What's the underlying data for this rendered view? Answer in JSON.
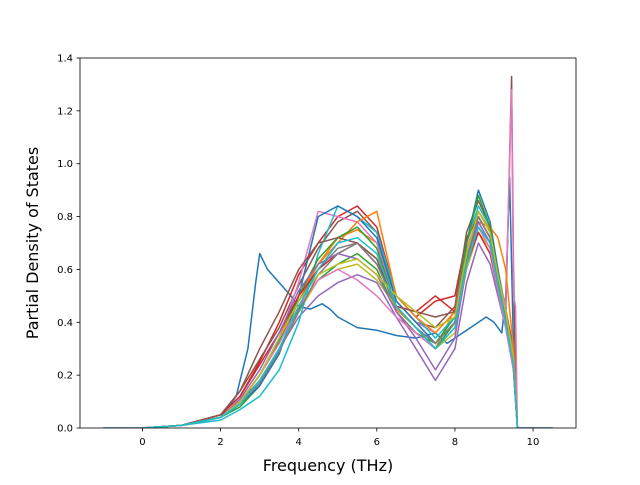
{
  "chart_data": {
    "type": "line",
    "title": "",
    "xlabel": "Frequency (THz)",
    "ylabel": "Partial Density of States",
    "xlim": [
      -1.6,
      11.1
    ],
    "ylim": [
      0.0,
      1.4
    ],
    "xticks": [
      0,
      2,
      4,
      6,
      8,
      10
    ],
    "yticks": [
      0.0,
      0.2,
      0.4,
      0.6,
      0.8,
      1.0,
      1.2,
      1.4
    ],
    "xtick_labels": [
      "0",
      "2",
      "4",
      "6",
      "8",
      "10"
    ],
    "ytick_labels": [
      "0.0",
      "0.2",
      "0.4",
      "0.6",
      "0.8",
      "1.0",
      "1.2",
      "1.4"
    ],
    "grid": false,
    "legend": "none",
    "colors": [
      "#1f77b4",
      "#ff7f0e",
      "#2ca02c",
      "#d62728",
      "#9467bd",
      "#8c564b",
      "#e377c2",
      "#7f7f7f",
      "#bcbd22",
      "#17becf"
    ],
    "series_note_count": 40,
    "series": [
      {
        "color": "#1f77b4",
        "x": [
          -1.0,
          0.0,
          1.0,
          2.0,
          2.4,
          2.7,
          2.9,
          3.0,
          3.2,
          3.5,
          3.8,
          4.0,
          4.3,
          4.6,
          4.8,
          5.0,
          5.5,
          6.0,
          6.5,
          7.0,
          7.5,
          7.8,
          8.0,
          8.2,
          8.4,
          8.6,
          8.8,
          9.0,
          9.2,
          9.3,
          9.4,
          9.5,
          9.6,
          10.0,
          10.5
        ],
        "y": [
          0.0,
          0.0,
          0.01,
          0.04,
          0.12,
          0.3,
          0.55,
          0.66,
          0.6,
          0.55,
          0.5,
          0.46,
          0.45,
          0.47,
          0.45,
          0.42,
          0.38,
          0.37,
          0.35,
          0.34,
          0.36,
          0.32,
          0.34,
          0.36,
          0.38,
          0.4,
          0.42,
          0.4,
          0.36,
          0.5,
          0.95,
          0.3,
          0.0,
          0.0,
          0.0
        ]
      },
      {
        "color": "#ff7f0e",
        "x": [
          0.0,
          1.0,
          2.0,
          2.5,
          3.0,
          3.5,
          4.0,
          4.5,
          5.0,
          5.5,
          6.0,
          6.5,
          7.0,
          7.5,
          8.0,
          8.3,
          8.6,
          8.9,
          9.1,
          9.3,
          9.5,
          9.6
        ],
        "y": [
          0.0,
          0.01,
          0.04,
          0.1,
          0.2,
          0.32,
          0.48,
          0.62,
          0.72,
          0.75,
          0.7,
          0.45,
          0.38,
          0.3,
          0.45,
          0.7,
          0.82,
          0.75,
          0.6,
          0.45,
          0.3,
          0.0
        ]
      },
      {
        "color": "#2ca02c",
        "x": [
          0.0,
          1.0,
          2.0,
          2.5,
          3.0,
          3.5,
          4.0,
          4.5,
          5.0,
          5.5,
          6.0,
          6.5,
          7.0,
          7.5,
          8.0,
          8.3,
          8.6,
          8.9,
          9.1,
          9.3,
          9.5,
          9.6
        ],
        "y": [
          0.0,
          0.01,
          0.04,
          0.08,
          0.16,
          0.3,
          0.45,
          0.56,
          0.62,
          0.66,
          0.6,
          0.44,
          0.36,
          0.32,
          0.42,
          0.65,
          0.78,
          0.7,
          0.55,
          0.42,
          0.25,
          0.0
        ]
      },
      {
        "color": "#d62728",
        "x": [
          0.0,
          1.0,
          2.0,
          2.5,
          3.0,
          3.5,
          4.0,
          4.5,
          5.0,
          5.5,
          6.0,
          6.5,
          7.0,
          7.5,
          8.0,
          8.3,
          8.6,
          8.9,
          9.1,
          9.3,
          9.5,
          9.6
        ],
        "y": [
          0.0,
          0.01,
          0.05,
          0.12,
          0.25,
          0.4,
          0.58,
          0.7,
          0.8,
          0.84,
          0.76,
          0.5,
          0.42,
          0.48,
          0.5,
          0.72,
          0.8,
          0.72,
          0.58,
          0.44,
          0.3,
          0.0
        ]
      },
      {
        "color": "#9467bd",
        "x": [
          0.0,
          1.0,
          2.0,
          2.5,
          3.0,
          3.5,
          4.0,
          4.5,
          5.0,
          5.5,
          6.0,
          6.5,
          7.0,
          7.5,
          8.0,
          8.3,
          8.6,
          8.9,
          9.1,
          9.3,
          9.5,
          9.6
        ],
        "y": [
          0.0,
          0.01,
          0.04,
          0.1,
          0.18,
          0.3,
          0.42,
          0.5,
          0.55,
          0.58,
          0.55,
          0.42,
          0.3,
          0.18,
          0.3,
          0.55,
          0.7,
          0.62,
          0.5,
          0.38,
          0.22,
          0.0
        ]
      },
      {
        "color": "#8c564b",
        "x": [
          0.0,
          1.0,
          2.0,
          2.5,
          3.0,
          3.5,
          4.0,
          4.5,
          5.0,
          5.5,
          6.0,
          6.5,
          7.0,
          7.5,
          8.0,
          8.3,
          8.6,
          8.9,
          9.1,
          9.3,
          9.45,
          9.5,
          9.55,
          9.6
        ],
        "y": [
          0.0,
          0.01,
          0.05,
          0.14,
          0.26,
          0.38,
          0.54,
          0.68,
          0.78,
          0.82,
          0.74,
          0.48,
          0.4,
          0.38,
          0.46,
          0.74,
          0.86,
          0.76,
          0.58,
          0.42,
          1.33,
          0.6,
          0.2,
          0.0
        ]
      },
      {
        "color": "#e377c2",
        "x": [
          0.0,
          1.0,
          2.0,
          2.5,
          3.0,
          3.5,
          4.0,
          4.5,
          5.0,
          5.5,
          6.0,
          6.5,
          7.0,
          7.5,
          8.0,
          8.3,
          8.6,
          8.9,
          9.1,
          9.3,
          9.45,
          9.5,
          9.55,
          9.6
        ],
        "y": [
          0.0,
          0.01,
          0.04,
          0.1,
          0.2,
          0.34,
          0.55,
          0.82,
          0.8,
          0.78,
          0.7,
          0.48,
          0.4,
          0.36,
          0.44,
          0.68,
          0.8,
          0.72,
          0.56,
          0.46,
          1.28,
          0.5,
          0.46,
          0.0
        ]
      },
      {
        "color": "#7f7f7f",
        "x": [
          0.0,
          1.0,
          2.0,
          2.5,
          3.0,
          3.5,
          4.0,
          4.5,
          5.0,
          5.5,
          6.0,
          6.5,
          7.0,
          7.5,
          8.0,
          8.3,
          8.6,
          8.9,
          9.1,
          9.3,
          9.5,
          9.6
        ],
        "y": [
          0.0,
          0.01,
          0.04,
          0.1,
          0.2,
          0.33,
          0.48,
          0.6,
          0.68,
          0.7,
          0.64,
          0.44,
          0.36,
          0.3,
          0.4,
          0.66,
          0.82,
          0.74,
          0.56,
          0.4,
          0.24,
          0.0
        ]
      },
      {
        "color": "#bcbd22",
        "x": [
          0.0,
          1.0,
          2.0,
          2.5,
          3.0,
          3.5,
          4.0,
          4.5,
          5.0,
          5.5,
          6.0,
          6.5,
          7.0,
          7.5,
          8.0,
          8.3,
          8.6,
          8.9,
          9.1,
          9.3,
          9.5,
          9.6
        ],
        "y": [
          0.0,
          0.01,
          0.04,
          0.09,
          0.18,
          0.3,
          0.44,
          0.56,
          0.6,
          0.62,
          0.56,
          0.46,
          0.38,
          0.3,
          0.36,
          0.6,
          0.74,
          0.68,
          0.52,
          0.4,
          0.26,
          0.0
        ]
      },
      {
        "color": "#17becf",
        "x": [
          0.0,
          1.0,
          2.0,
          2.5,
          3.0,
          3.5,
          4.0,
          4.5,
          5.0,
          5.5,
          6.0,
          6.5,
          7.0,
          7.5,
          8.0,
          8.3,
          8.6,
          8.9,
          9.1,
          9.3,
          9.5,
          9.6
        ],
        "y": [
          0.0,
          0.01,
          0.03,
          0.07,
          0.12,
          0.22,
          0.4,
          0.66,
          0.84,
          0.8,
          0.74,
          0.5,
          0.42,
          0.34,
          0.42,
          0.7,
          0.84,
          0.76,
          0.6,
          0.44,
          0.28,
          0.0
        ]
      },
      {
        "color": "#1f77b4",
        "x": [
          0.0,
          1.0,
          2.0,
          2.5,
          3.0,
          3.5,
          4.0,
          4.5,
          5.0,
          5.5,
          6.0,
          6.5,
          7.0,
          7.5,
          8.0,
          8.3,
          8.6,
          8.9,
          9.1,
          9.3,
          9.5,
          9.6
        ],
        "y": [
          0.0,
          0.01,
          0.04,
          0.09,
          0.16,
          0.28,
          0.5,
          0.8,
          0.84,
          0.8,
          0.72,
          0.48,
          0.4,
          0.32,
          0.4,
          0.7,
          0.9,
          0.78,
          0.6,
          0.42,
          0.26,
          0.0
        ]
      },
      {
        "color": "#ff7f0e",
        "x": [
          0.0,
          1.0,
          2.0,
          2.5,
          3.0,
          3.5,
          4.0,
          4.5,
          5.0,
          5.5,
          6.0,
          6.5,
          7.0,
          7.5,
          8.0,
          8.3,
          8.6,
          8.9,
          9.1,
          9.3,
          9.5,
          9.6
        ],
        "y": [
          0.0,
          0.01,
          0.04,
          0.1,
          0.2,
          0.34,
          0.5,
          0.62,
          0.7,
          0.78,
          0.82,
          0.5,
          0.42,
          0.36,
          0.44,
          0.64,
          0.78,
          0.76,
          0.72,
          0.6,
          0.3,
          0.0
        ]
      },
      {
        "color": "#2ca02c",
        "x": [
          0.0,
          1.0,
          2.0,
          2.5,
          3.0,
          3.5,
          4.0,
          4.5,
          5.0,
          5.5,
          6.0,
          6.5,
          7.0,
          7.5,
          8.0,
          8.3,
          8.6,
          8.9,
          9.1,
          9.3,
          9.5,
          9.6
        ],
        "y": [
          0.0,
          0.01,
          0.04,
          0.1,
          0.2,
          0.33,
          0.5,
          0.64,
          0.72,
          0.76,
          0.68,
          0.46,
          0.38,
          0.3,
          0.4,
          0.7,
          0.88,
          0.76,
          0.58,
          0.42,
          0.24,
          0.0
        ]
      },
      {
        "color": "#d62728",
        "x": [
          0.0,
          1.0,
          2.0,
          2.5,
          3.0,
          3.5,
          4.0,
          4.5,
          5.0,
          5.5,
          6.0,
          6.5,
          7.0,
          7.5,
          8.0,
          8.3,
          8.6,
          8.9,
          9.1,
          9.3,
          9.5,
          9.6
        ],
        "y": [
          0.0,
          0.01,
          0.05,
          0.12,
          0.24,
          0.36,
          0.5,
          0.6,
          0.66,
          0.7,
          0.62,
          0.46,
          0.44,
          0.5,
          0.44,
          0.62,
          0.74,
          0.66,
          0.52,
          0.4,
          0.24,
          0.0
        ]
      },
      {
        "color": "#9467bd",
        "x": [
          0.0,
          1.0,
          2.0,
          2.5,
          3.0,
          3.5,
          4.0,
          4.5,
          5.0,
          5.5,
          6.0,
          6.5,
          7.0,
          7.5,
          8.0,
          8.3,
          8.6,
          8.9,
          9.1,
          9.3,
          9.5,
          9.6
        ],
        "y": [
          0.0,
          0.01,
          0.04,
          0.11,
          0.22,
          0.36,
          0.52,
          0.62,
          0.66,
          0.64,
          0.58,
          0.44,
          0.34,
          0.22,
          0.34,
          0.62,
          0.78,
          0.7,
          0.54,
          0.38,
          0.22,
          0.0
        ]
      },
      {
        "color": "#8c564b",
        "x": [
          0.0,
          1.0,
          2.0,
          2.5,
          3.0,
          3.5,
          4.0,
          4.5,
          5.0,
          5.5,
          6.0,
          6.5,
          7.0,
          7.5,
          8.0,
          8.3,
          8.6,
          8.9,
          9.1,
          9.3,
          9.5,
          9.6
        ],
        "y": [
          0.0,
          0.01,
          0.05,
          0.14,
          0.3,
          0.44,
          0.6,
          0.7,
          0.72,
          0.7,
          0.64,
          0.46,
          0.44,
          0.42,
          0.44,
          0.64,
          0.8,
          0.72,
          0.56,
          0.4,
          0.22,
          0.0
        ]
      },
      {
        "color": "#e377c2",
        "x": [
          0.0,
          1.0,
          2.0,
          2.5,
          3.0,
          3.5,
          4.0,
          4.5,
          5.0,
          5.5,
          6.0,
          6.5,
          7.0,
          7.5,
          8.0,
          8.3,
          8.6,
          8.9,
          9.1,
          9.3,
          9.5,
          9.6
        ],
        "y": [
          0.0,
          0.01,
          0.04,
          0.1,
          0.2,
          0.32,
          0.46,
          0.56,
          0.6,
          0.56,
          0.5,
          0.42,
          0.36,
          0.3,
          0.38,
          0.62,
          0.76,
          0.68,
          0.52,
          0.38,
          0.22,
          0.0
        ]
      },
      {
        "color": "#7f7f7f",
        "x": [
          0.0,
          1.0,
          2.0,
          2.5,
          3.0,
          3.5,
          4.0,
          4.5,
          5.0,
          5.5,
          6.0,
          6.5,
          7.0,
          7.5,
          8.0,
          8.3,
          8.6,
          8.9,
          9.1,
          9.3,
          9.5,
          9.6
        ],
        "y": [
          0.0,
          0.01,
          0.04,
          0.09,
          0.17,
          0.29,
          0.44,
          0.58,
          0.66,
          0.7,
          0.62,
          0.46,
          0.38,
          0.32,
          0.4,
          0.64,
          0.8,
          0.72,
          0.56,
          0.42,
          0.24,
          0.0
        ]
      },
      {
        "color": "#bcbd22",
        "x": [
          0.0,
          1.0,
          2.0,
          2.5,
          3.0,
          3.5,
          4.0,
          4.5,
          5.0,
          5.5,
          6.0,
          6.5,
          7.0,
          7.5,
          8.0,
          8.3,
          8.6,
          8.9,
          9.1,
          9.3,
          9.5,
          9.6
        ],
        "y": [
          0.0,
          0.01,
          0.04,
          0.1,
          0.2,
          0.34,
          0.48,
          0.58,
          0.62,
          0.64,
          0.58,
          0.5,
          0.44,
          0.38,
          0.42,
          0.66,
          0.82,
          0.74,
          0.58,
          0.44,
          0.26,
          0.0
        ]
      },
      {
        "color": "#17becf",
        "x": [
          0.0,
          1.0,
          2.0,
          2.5,
          3.0,
          3.5,
          4.0,
          4.5,
          5.0,
          5.5,
          6.0,
          6.5,
          7.0,
          7.5,
          8.0,
          8.3,
          8.6,
          8.9,
          9.1,
          9.3,
          9.5,
          9.6
        ],
        "y": [
          0.0,
          0.01,
          0.04,
          0.09,
          0.18,
          0.3,
          0.46,
          0.6,
          0.7,
          0.72,
          0.66,
          0.46,
          0.38,
          0.3,
          0.38,
          0.62,
          0.76,
          0.7,
          0.54,
          0.4,
          0.24,
          0.0
        ]
      }
    ]
  }
}
